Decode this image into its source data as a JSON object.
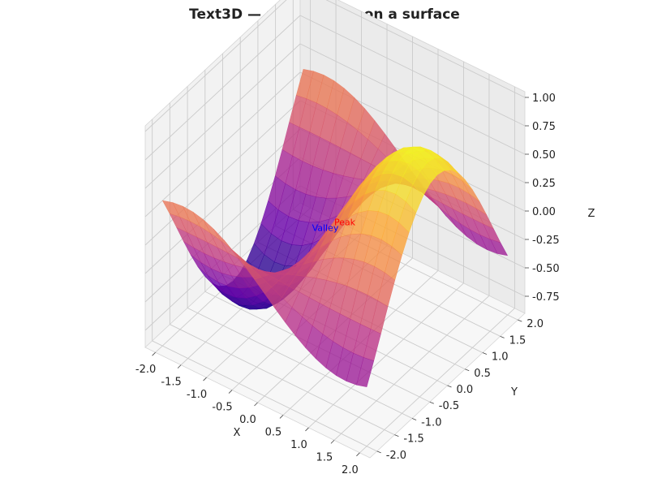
{
  "chart_data": {
    "type": "surface3d",
    "title": "Text3D — annotations on a surface",
    "xlabel": "X",
    "ylabel": "Y",
    "zlabel": "Z",
    "xlim": [
      -2.2,
      2.2
    ],
    "ylim": [
      -2.2,
      2.2
    ],
    "zlim": [
      -0.9,
      1.05
    ],
    "x_ticks": [
      -2.0,
      -1.5,
      -1.0,
      -0.5,
      0.0,
      0.5,
      1.0,
      1.5,
      2.0
    ],
    "y_ticks": [
      -2.0,
      -1.5,
      -1.0,
      -0.5,
      0.0,
      0.5,
      1.0,
      1.5,
      2.0
    ],
    "z_ticks": [
      -0.75,
      -0.5,
      -0.25,
      0.0,
      0.25,
      0.5,
      0.75,
      1.0
    ],
    "x_tick_labels": [
      "-2.0",
      "-1.5",
      "-1.0",
      "-0.5",
      "0.0",
      "0.5",
      "1.0",
      "1.5",
      "2.0"
    ],
    "y_tick_labels": [
      "-2.0",
      "-1.5",
      "-1.0",
      "-0.5",
      "0.0",
      "0.5",
      "1.0",
      "1.5",
      "2.0"
    ],
    "z_tick_labels": [
      "-0.75",
      "-0.50",
      "-0.25",
      "0.00",
      "0.25",
      "0.50",
      "0.75",
      "1.00"
    ],
    "surface": {
      "function": "sin(x) * cos(y)",
      "x_range": [
        -2.0,
        2.0
      ],
      "y_range": [
        -2.0,
        2.0
      ],
      "resolution": 21,
      "colormap": [
        "#0d0887",
        "#6a00a8",
        "#b12a90",
        "#e16462",
        "#fca636",
        "#f0f921"
      ]
    },
    "annotations": [
      {
        "text": "Peak",
        "x": 1.57,
        "y": -2.0,
        "z": 0.95,
        "color": "#ff0000"
      },
      {
        "text": "Valley",
        "x": -1.57,
        "y": 2.0,
        "z": -0.95,
        "color": "#0000ff"
      }
    ],
    "grid": true
  }
}
